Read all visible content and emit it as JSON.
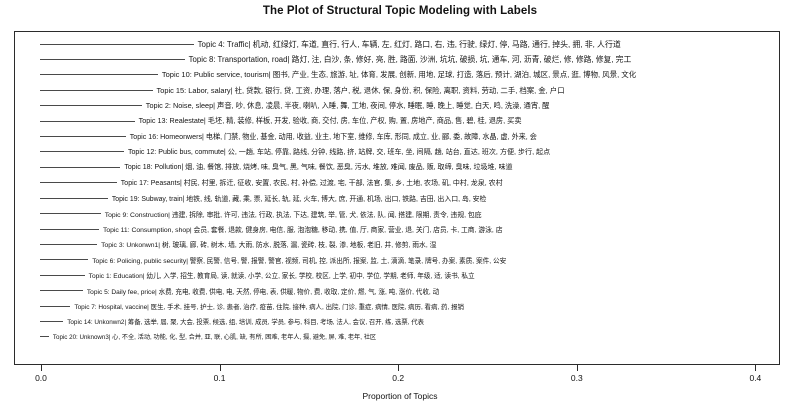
{
  "chart_data": {
    "type": "bar",
    "orientation": "horizontal",
    "title": "The Plot of Structural Topic Modeling with Labels",
    "xlabel": "Proportion of Topics",
    "xlim": [
      0.0,
      0.42
    ],
    "x_ticks": [
      "0.0",
      "0.1",
      "0.2",
      "0.3",
      "0.4"
    ],
    "grid": false,
    "legend": "none",
    "categories": [
      "Topic 4: Traffic",
      "Topic 8: Transportation, road",
      "Topic 10: Public service, tourism",
      "Topic 15: Labor, salary",
      "Topic 2: Noise, sleep",
      "Topic 13: Realestate",
      "Topic 16: Homeonwers",
      "Topic 12: Public bus, commute",
      "Topic 18: Pollution",
      "Topic 17: Peasants",
      "Topic 19: Subway, train",
      "Topic 9: Construction",
      "Topic 11: Consumption, shop",
      "Topic 3: Unkonwn1",
      "Topic 6: Policing, public security",
      "Topic 1: Education",
      "Topic 5: Daily fee, price",
      "Topic 7: Hospital, vaccine",
      "Topic 14: Unkonwn2",
      "Topic 20: Unknown3"
    ],
    "values": [
      0.086,
      0.081,
      0.066,
      0.063,
      0.057,
      0.053,
      0.048,
      0.047,
      0.045,
      0.043,
      0.038,
      0.034,
      0.033,
      0.032,
      0.027,
      0.025,
      0.024,
      0.017,
      0.013,
      0.005
    ],
    "term_lists": [
      "机动, 红绿灯, 车道, 直行, 行人, 车辆, 左, 红灯, 路口, 右, 违, 行驶, 绿灯, 停, 马路, 通行, 掉头, 拥, 非, 人行道",
      "路灯, 注, 白沙, 条, 修好, 亮, 胜, 路面, 沙洲, 坑坑, 破损, 坑, 通车, 河, 沥青, 破烂, 修, 修路, 修复, 完工",
      "图书, 产业, 生态, 旅游, 址, 体育, 发展, 创新, 用地, 足球, 打造, 落后, 预计, 湖泊, 城区, 景点, 逛, 博物, 风景, 文化",
      "社, 贷款, 银行, 贷, 工资, 办理, 落户, 税, 退休, 保, 身份, 积, 保险, 离职, 资料, 劳动, 二手, 档案, 金, 户口",
      "声音, 吵, 休息, 凌晨, 半夜, 喇叭, 入睡, 舞, 工地, 夜间, 停水, 睡眠, 睡, 晚上, 睡觉, 白天, 鸣, 洗澡, 通宵, 醒",
      "毛坯, 精, 装修, 样板, 开发, 验收, 商, 交付, 房, 车位, 产权, 购, 置, 房地产, 商品, 售, 碧, 桂, 退房, 买卖",
      "电梯, 门禁, 物业, 基金, 动用, 收益, 业主, 地下室, 维修, 车库, 形同, 成立, 业, 郦, 委, 故障, 水晶, 虚, 外来, 会",
      "公, 一趟, 车站, 停靠, 路线, 分钟, 线路, 挤, 站牌, 交, 班车, 坐, 间隔, 趟, 站台, 直达, 班次, 方便, 步行, 起点",
      "烟, 油, 餐馆, 排放, 烧烤, 味, 臭气, 黑, 气味, 餐饮, 恶臭, 污水, 堆放, 难闻, 废品, 贩, 取缔, 臭味, 垃圾堆, 味道",
      "村民, 村里, 拆迁, 征收, 安置, 农民, 村, 补偿, 过渡, 宅, 干部, 法官, 集, 乡, 土地, 农场, 矶, 中村, 龙泉, 农村",
      "地铁, 线, 轨道, 藏, 乘, 票, 延长, 轨, 延, 火车, 博大, 庶, 开通, 机场, 出口, 铁路, 吉田, 出入口, 岛, 安检",
      "违建, 拆除, 审批, 许可, 违法, 行政, 执法, 下达, 建筑, 举, 管, 犬, 依法, 队, 闻, 搭建, 限期, 责令, 违规, 包庇",
      "会员, 套餐, 退款, 健身房, 电信, 服, 泡泡糖, 移动, 携, 值, 厅, 商家, 营业, 退, 关门, 店员, 卡, 工商, 游泳, 店",
      "树, 玻璃, 廊, 砖, 树木, 墙, 大雨, 防水, 脱落, 漏, 瓷砖, 枝, 裂, 渗, 地板, 老旧, 井, 修剪, 雨水, 湿",
      "警察, 民警, 信号, 警, 报警, 警官, 视频, 司机, 控, 派出所, 报案, 监, 土, 滴滴, 笔录, 牌号, 办案, 素质, 案件, 公安",
      "幼儿, 入学, 招生, 教育局, 读, 就读, 小学, 公立, 家长, 学校, 校区, 上学, 初中, 学位, 学期, 老师, 年级, 适, 读书, 私立",
      "水费, 充电, 收费, 供电, 电, 天然, 停电, 表, 供暖, 物价, 费, 收取, 定价, 燃, 气, 涨, 吨, 涨价, 代收, 动",
      "医生, 手术, 挂号, 护士, 诊, 患者, 治疗, 疫苗, 住院, 接种, 病人, 出院, 门诊, 重症, 病情, 医院, 病历, 看病, 药, 报销",
      "筹备, 选举, 届, 聚, 大会, 投票, 候选, 组, 培训, 成员, 学员, 参与, 科目, 考场, 法人, 会议, 召开, 练, 选票, 代表",
      "心, 不全, 活动, 功能, 化, 型, 合并, 亚, 联, 心肌, 缺, 有所, 困难, 老年人, 摄, 避免, 屏, 难, 老年, 社区"
    ],
    "label_separator": "| ",
    "colors": {
      "line": "#4a4a4a",
      "frame": "#2b2b2b",
      "text": "#111111",
      "background": "#ffffff"
    }
  }
}
